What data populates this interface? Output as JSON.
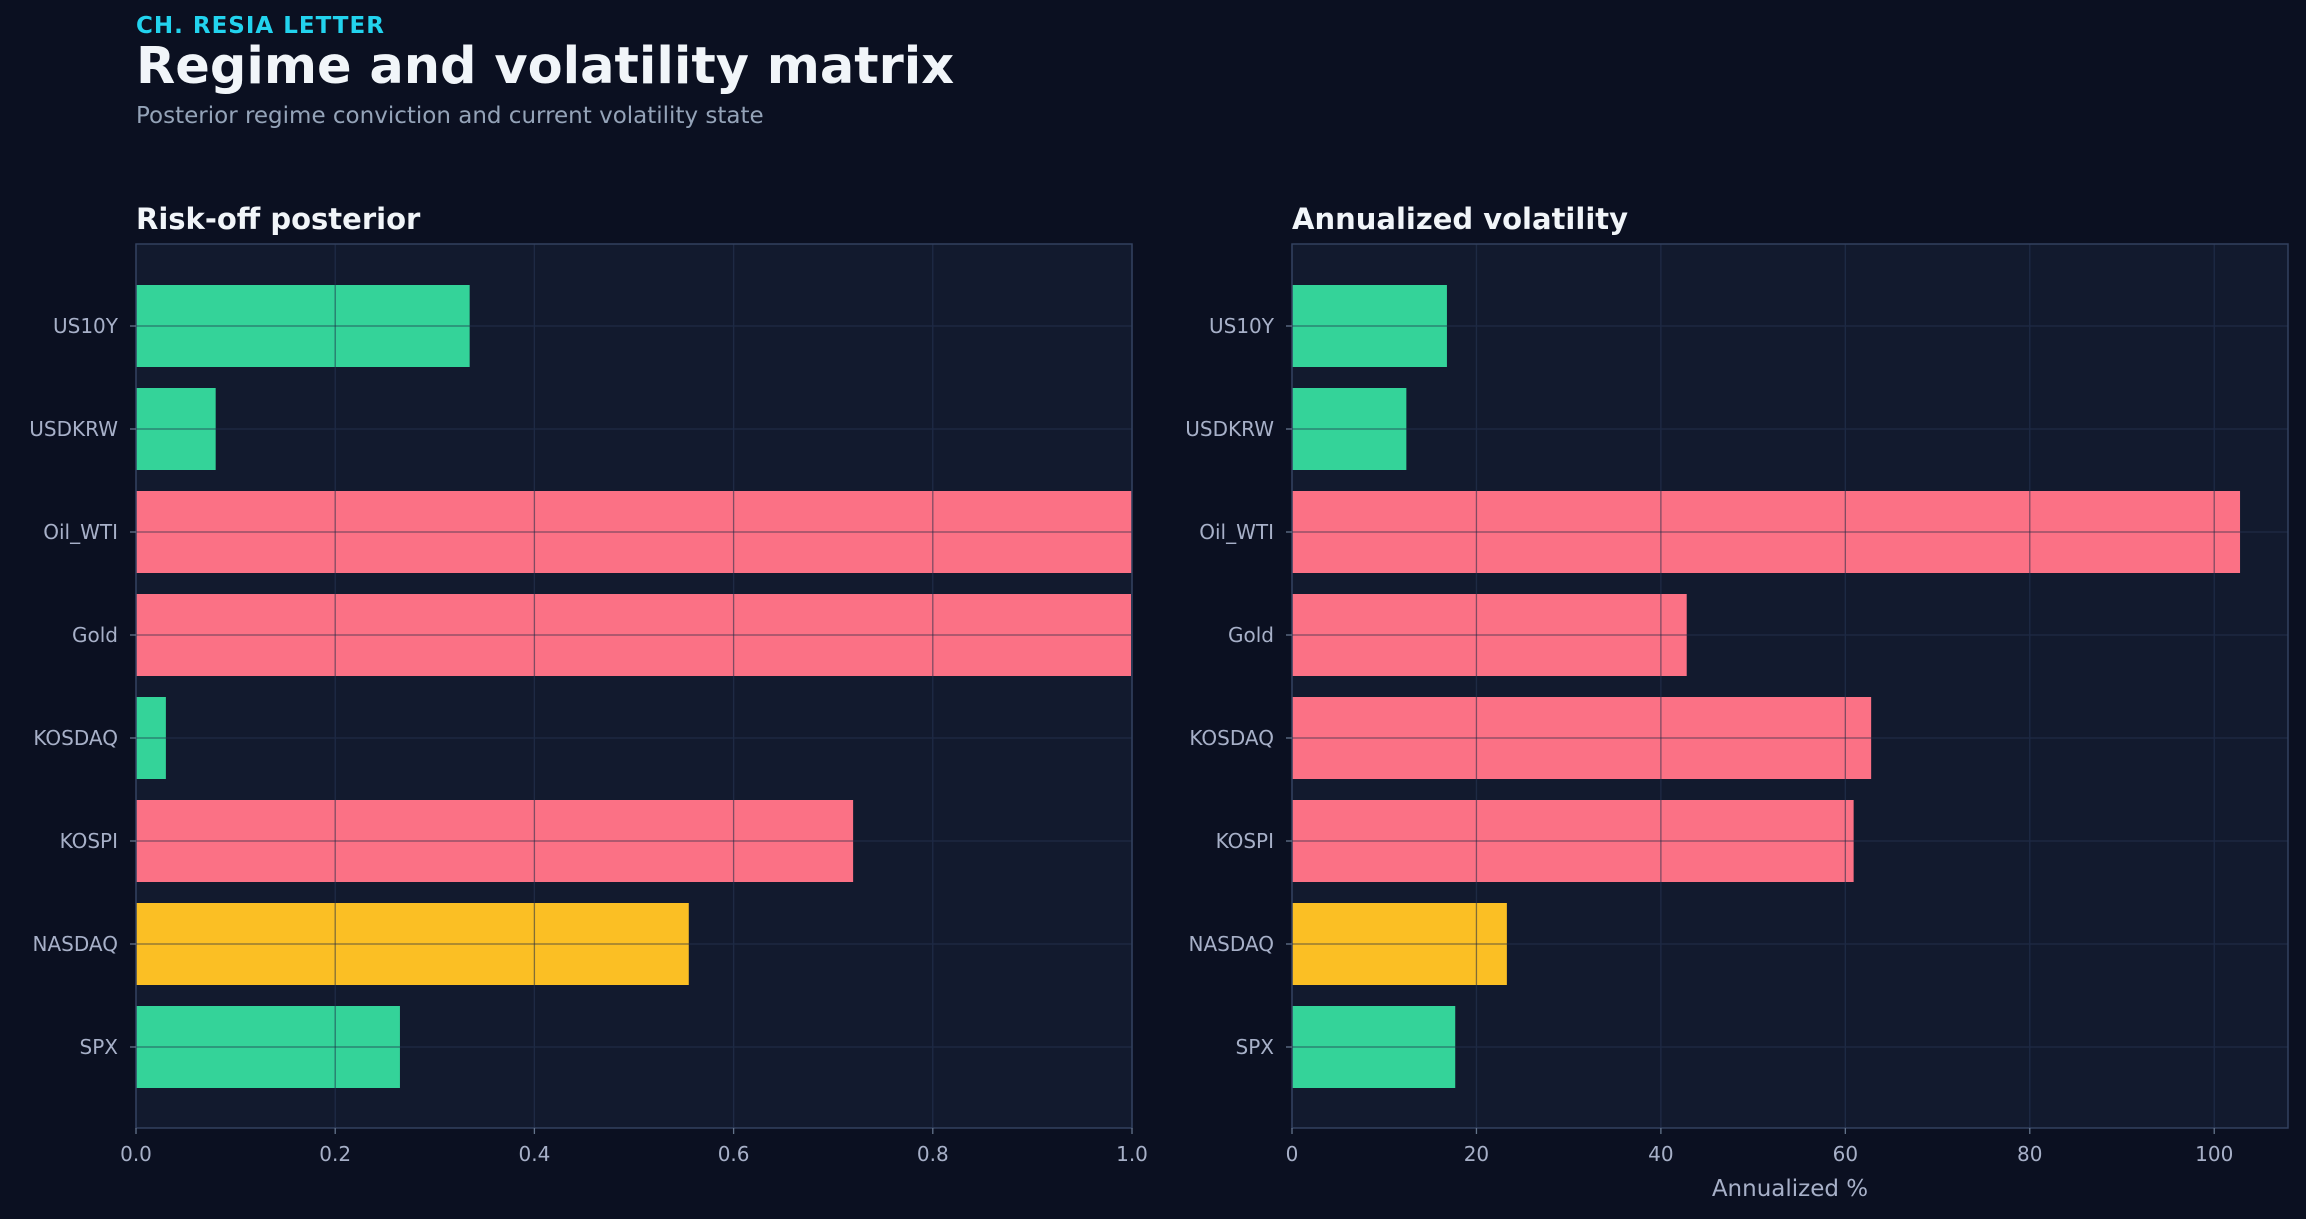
{
  "header": {
    "kicker": "CH. RESIA LETTER",
    "title": "Regime and volatility matrix",
    "subtitle": "Posterior regime conviction and current volatility state"
  },
  "colors": {
    "background": "#0b1021",
    "panel": "#121a2e",
    "green": "#34d399",
    "red": "#fb7185",
    "amber": "#fbbf24",
    "accent": "#22d3ee"
  },
  "chart_data": [
    {
      "type": "bar",
      "orientation": "horizontal",
      "title": "Risk-off posterior",
      "xlabel": "",
      "ylabel": "",
      "categories": [
        "US10Y",
        "USDKRW",
        "Oil_WTI",
        "Gold",
        "KOSDAQ",
        "KOSPI",
        "NASDAQ",
        "SPX"
      ],
      "values": [
        0.335,
        0.08,
        1.0,
        0.999,
        0.03,
        0.72,
        0.555,
        0.265
      ],
      "bar_colors": [
        "green",
        "green",
        "red",
        "red",
        "green",
        "red",
        "amber",
        "green"
      ],
      "xlim": [
        0,
        1.0
      ],
      "xticks": [
        "0.0",
        "0.2",
        "0.4",
        "0.6",
        "0.8",
        "1.0"
      ],
      "xtick_values": [
        0,
        0.2,
        0.4,
        0.6,
        0.8,
        1.0
      ],
      "grid": true
    },
    {
      "type": "bar",
      "orientation": "horizontal",
      "title": "Annualized volatility",
      "xlabel": "Annualized %",
      "ylabel": "",
      "categories": [
        "US10Y",
        "USDKRW",
        "Oil_WTI",
        "Gold",
        "KOSDAQ",
        "KOSPI",
        "NASDAQ",
        "SPX"
      ],
      "values": [
        16.8,
        12.4,
        102.8,
        42.8,
        62.8,
        60.9,
        23.3,
        17.7
      ],
      "bar_colors": [
        "green",
        "green",
        "red",
        "red",
        "red",
        "red",
        "amber",
        "green"
      ],
      "xlim": [
        0,
        108
      ],
      "xticks": [
        "0",
        "20",
        "40",
        "60",
        "80",
        "100"
      ],
      "xtick_values": [
        0,
        20,
        40,
        60,
        80,
        100
      ],
      "grid": true
    }
  ]
}
